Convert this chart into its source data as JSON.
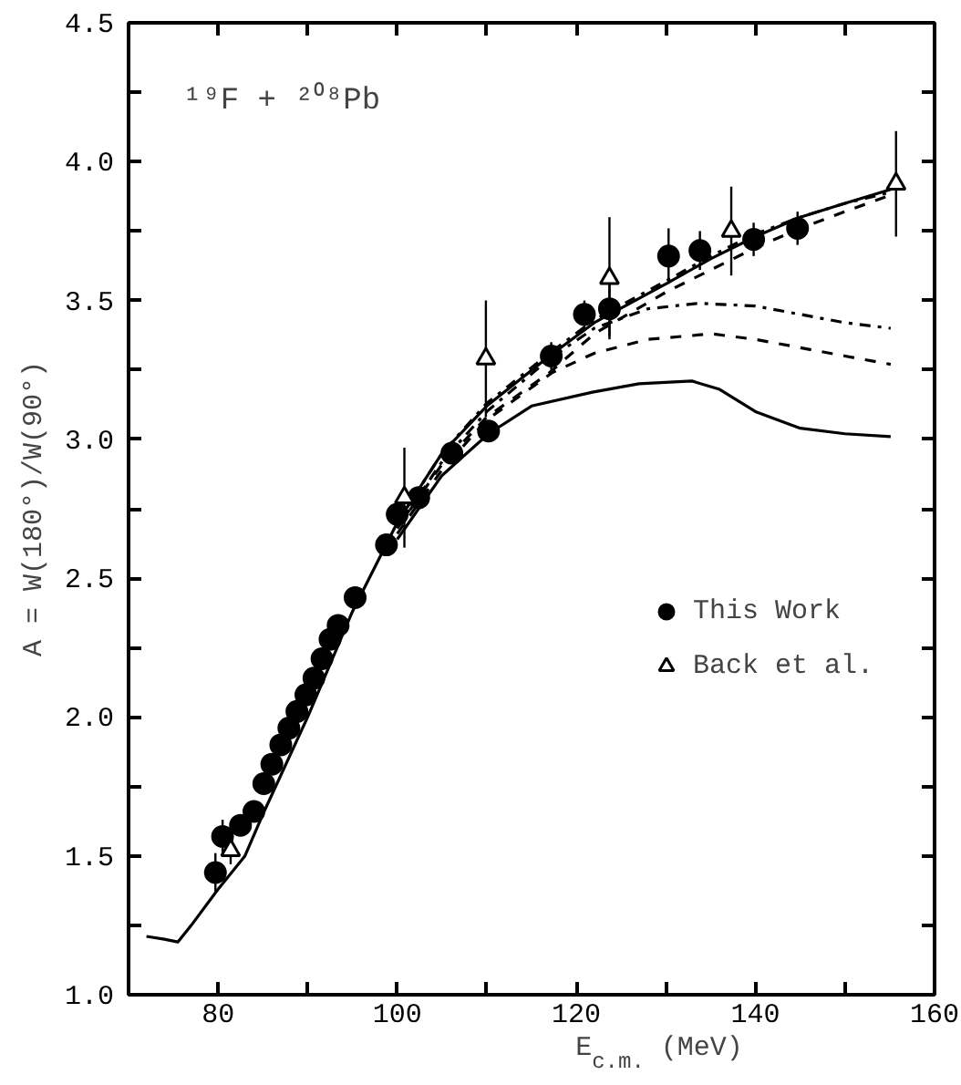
{
  "chart_data": {
    "type": "line",
    "xlabel": "E$_{c.m.}$ (MeV)",
    "ylabel": "A = W(180°)/W(90°)",
    "annotations": [
      "¹⁹F + ²⁰⁸Pb"
    ],
    "xlim": [
      70,
      160
    ],
    "xticks": [
      {
        "value": 70,
        "label": null
      },
      80,
      {
        "value": 90,
        "label": null
      },
      100,
      {
        "value": 110,
        "label": null
      },
      120,
      {
        "value": 130,
        "label": null
      },
      140,
      {
        "value": 150,
        "label": null
      },
      160
    ],
    "ylim": [
      1.0,
      4.5
    ],
    "yticks": [
      "1.0",
      {
        "value": 1.25,
        "label": null
      },
      1.5,
      {
        "value": 1.75,
        "label": null
      },
      "2.0",
      {
        "value": 2.25,
        "label": null
      },
      2.5,
      {
        "value": 2.75,
        "label": null
      },
      "3.0",
      {
        "value": 3.25,
        "label": null
      },
      3.5,
      {
        "value": 3.75,
        "label": null
      },
      "4.0",
      {
        "value": 4.25,
        "label": null
      },
      4.5
    ],
    "grid": false,
    "legend": "right",
    "series": [
      {
        "type": "line",
        "color": "#000000",
        "line_style": "solid",
        "x": [
          72,
          74,
          75.5,
          77,
          80,
          83,
          85,
          90,
          95,
          100,
          105,
          110,
          117,
          122,
          130,
          135,
          140,
          145,
          150,
          155.1
        ],
        "values": [
          1.21,
          1.2,
          1.19,
          1.25,
          1.38,
          1.5,
          1.65,
          2.0,
          2.38,
          2.7,
          2.95,
          3.12,
          3.3,
          3.42,
          3.56,
          3.65,
          3.73,
          3.8,
          3.85,
          3.9
        ]
      },
      {
        "type": "line",
        "color": "#000000",
        "line_style": "dashdot",
        "x": [
          100,
          105,
          110,
          117,
          122,
          130,
          135,
          140,
          145,
          150,
          155.1
        ],
        "values": [
          2.7,
          2.95,
          3.13,
          3.31,
          3.43,
          3.57,
          3.66,
          3.74,
          3.8,
          3.85,
          3.89
        ]
      },
      {
        "type": "line",
        "color": "#000000",
        "line_style": "dashed",
        "x": [
          100,
          105,
          110,
          117,
          122,
          130,
          135,
          140,
          145,
          150,
          155.1
        ],
        "values": [
          2.68,
          2.91,
          3.08,
          3.24,
          3.38,
          3.53,
          3.61,
          3.69,
          3.76,
          3.82,
          3.88
        ]
      },
      {
        "type": "line",
        "color": "#000000",
        "line_style": "dashdot",
        "x": [
          100,
          105,
          110,
          117,
          122,
          128,
          133.6,
          140,
          145,
          150,
          155.1
        ],
        "values": [
          2.68,
          2.92,
          3.1,
          3.29,
          3.4,
          3.47,
          3.49,
          3.48,
          3.45,
          3.42,
          3.4
        ]
      },
      {
        "type": "line",
        "color": "#000000",
        "line_style": "dashed",
        "x": [
          100,
          105,
          110,
          117.3,
          122,
          128,
          135.1,
          140,
          145,
          150,
          155.1
        ],
        "values": [
          2.66,
          2.89,
          3.07,
          3.24,
          3.31,
          3.36,
          3.38,
          3.36,
          3.33,
          3.3,
          3.27
        ]
      },
      {
        "type": "line",
        "color": "#000000",
        "line_style": "solid",
        "x": [
          100,
          105,
          110.2,
          115,
          121.8,
          127,
          132.9,
          136,
          140,
          145,
          150,
          155.1
        ],
        "values": [
          2.64,
          2.87,
          3.02,
          3.12,
          3.17,
          3.2,
          3.21,
          3.18,
          3.1,
          3.04,
          3.02,
          3.01
        ]
      },
      {
        "type": "scatter",
        "name": "This Work",
        "color": "#000000",
        "marker": "circle",
        "x": [
          79.7,
          80.5,
          82.5,
          84.0,
          85.1,
          86.0,
          87.0,
          87.9,
          88.8,
          89.8,
          90.7,
          91.6,
          92.5,
          93.4,
          95.3,
          98.8,
          100.0,
          102.4,
          106.1,
          110.2,
          117.2,
          120.9,
          123.7,
          130.3,
          133.8,
          139.8,
          144.7
        ],
        "values": [
          1.44,
          1.57,
          1.61,
          1.66,
          1.76,
          1.83,
          1.9,
          1.96,
          2.02,
          2.08,
          2.14,
          2.21,
          2.28,
          2.33,
          2.43,
          2.62,
          2.73,
          2.79,
          2.95,
          3.03,
          3.3,
          3.45,
          3.47,
          3.66,
          3.68,
          3.72,
          3.76
        ],
        "errors": [
          0.07,
          0.06,
          null,
          null,
          null,
          null,
          null,
          null,
          null,
          null,
          null,
          null,
          null,
          null,
          null,
          null,
          null,
          null,
          null,
          null,
          0.05,
          0.05,
          0.1,
          0.1,
          0.07,
          0.06,
          0.06
        ]
      },
      {
        "type": "scatter",
        "name": "Back et al.",
        "color": "#000000",
        "marker": "triangle",
        "x": [
          81.4,
          100.8,
          109.9,
          123.7,
          137.3,
          155.7
        ],
        "values": [
          1.52,
          2.79,
          3.29,
          3.58,
          3.75,
          3.92
        ],
        "errors": [
          0.05,
          0.18,
          0.21,
          0.22,
          0.16,
          0.19
        ]
      }
    ]
  }
}
